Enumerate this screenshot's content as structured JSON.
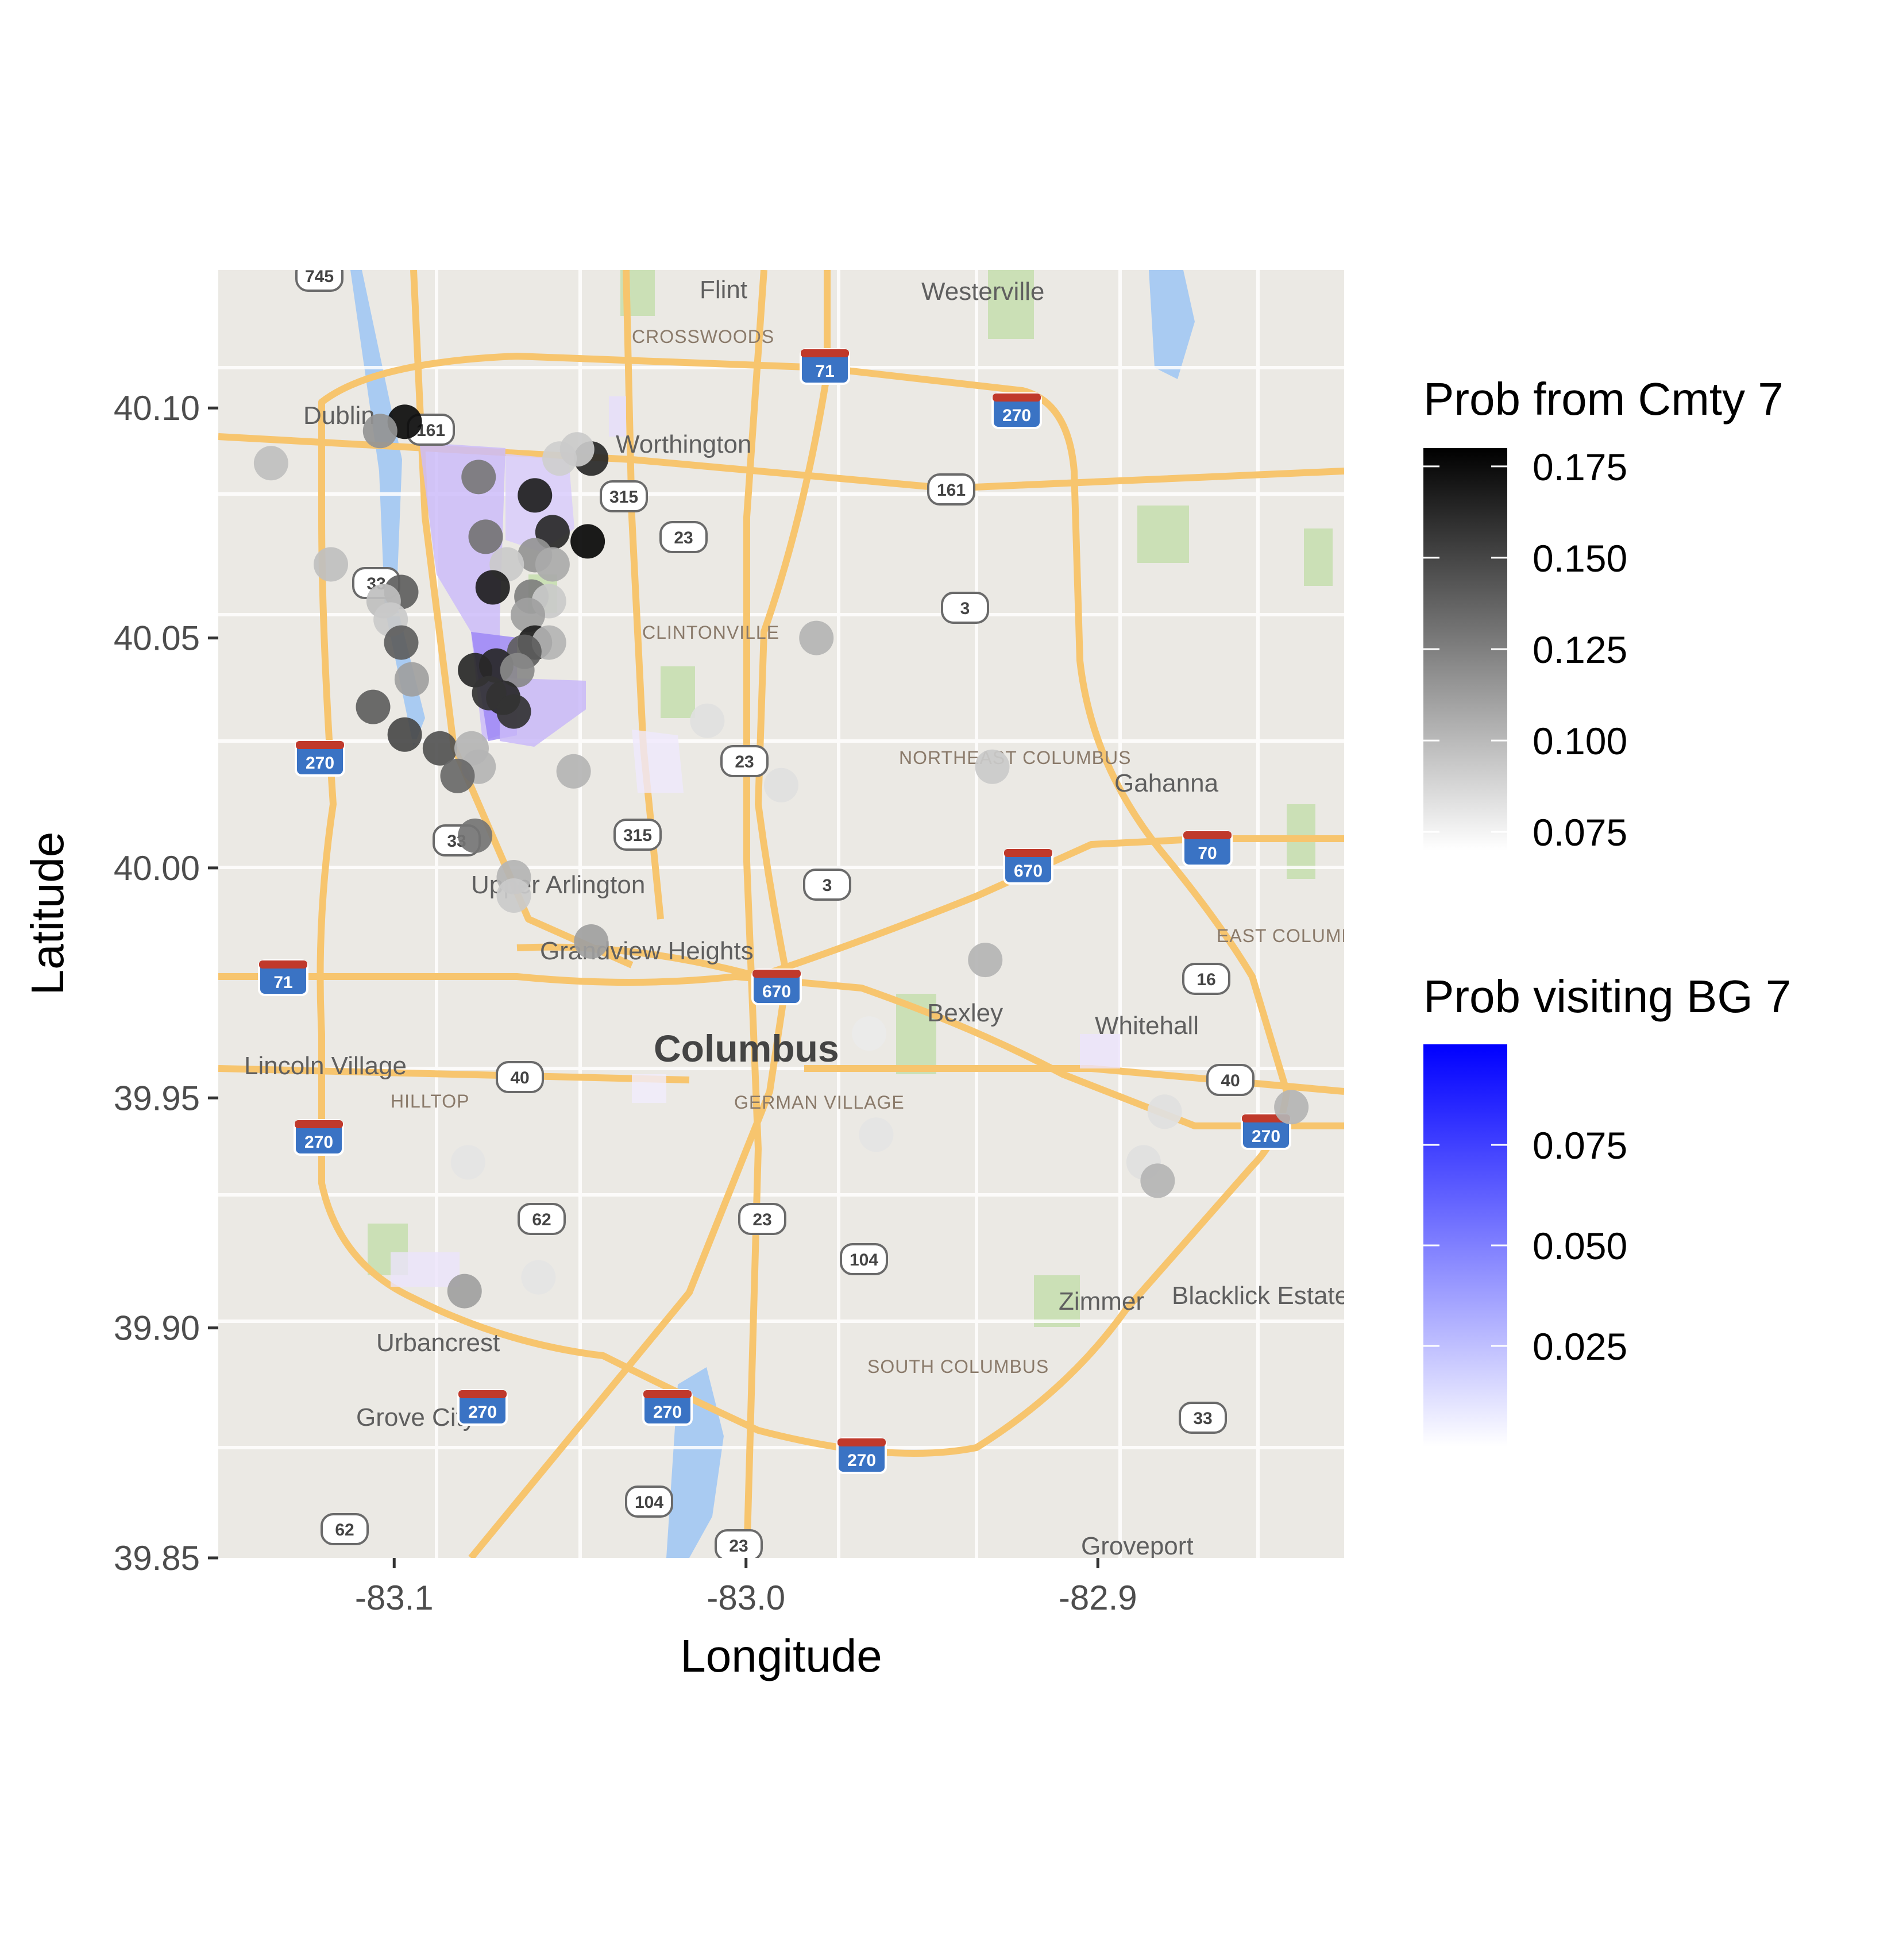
{
  "chart_data": {
    "type": "scatter",
    "basemap": "road map of Columbus, Ohio area",
    "xlabel": "Longitude",
    "ylabel": "Latitude",
    "xlim": [
      -83.15,
      -82.83
    ],
    "ylim": [
      39.85,
      40.13
    ],
    "x_ticks": [
      -83.1,
      -83.0,
      -82.9
    ],
    "x_tick_labels": [
      "-83.1",
      "-83.0",
      "-82.9"
    ],
    "y_ticks": [
      39.85,
      39.9,
      39.95,
      40.0,
      40.05,
      40.1
    ],
    "y_tick_labels": [
      "39.85",
      "39.90",
      "39.95",
      "40.00",
      "40.05",
      "40.10"
    ],
    "grid": false,
    "legend_placement": "right",
    "legends": [
      {
        "title": "Prob from Cmty 7",
        "encoding": "point fill, white to black",
        "range": [
          0.07,
          0.18
        ],
        "ticks": [
          0.175,
          0.15,
          0.125,
          0.1,
          0.075
        ],
        "tick_labels": [
          "0.175",
          "0.150",
          "0.125",
          "0.100",
          "0.075"
        ],
        "colors": [
          "#ffffff",
          "#000000"
        ]
      },
      {
        "title": "Prob visiting BG 7",
        "encoding": "block group fill, white to blue",
        "range": [
          0.0,
          0.1
        ],
        "ticks": [
          0.075,
          0.05,
          0.025
        ],
        "tick_labels": [
          "0.075",
          "0.050",
          "0.025"
        ],
        "colors": [
          "#ffffff",
          "#0000ff"
        ]
      }
    ],
    "points": [
      {
        "lon": -83.097,
        "lat": 40.097,
        "p": 0.178
      },
      {
        "lon": -83.104,
        "lat": 40.095,
        "p": 0.115
      },
      {
        "lon": -83.135,
        "lat": 40.088,
        "p": 0.095
      },
      {
        "lon": -83.044,
        "lat": 40.089,
        "p": 0.165
      },
      {
        "lon": -83.053,
        "lat": 40.089,
        "p": 0.088
      },
      {
        "lon": -83.048,
        "lat": 40.091,
        "p": 0.09
      },
      {
        "lon": -83.076,
        "lat": 40.085,
        "p": 0.128
      },
      {
        "lon": -83.06,
        "lat": 40.081,
        "p": 0.17
      },
      {
        "lon": -83.045,
        "lat": 40.071,
        "p": 0.182
      },
      {
        "lon": -83.055,
        "lat": 40.073,
        "p": 0.165
      },
      {
        "lon": -83.074,
        "lat": 40.072,
        "p": 0.13
      },
      {
        "lon": -83.06,
        "lat": 40.068,
        "p": 0.115
      },
      {
        "lon": -83.055,
        "lat": 40.066,
        "p": 0.105
      },
      {
        "lon": -83.068,
        "lat": 40.066,
        "p": 0.09
      },
      {
        "lon": -83.118,
        "lat": 40.066,
        "p": 0.095
      },
      {
        "lon": -83.072,
        "lat": 40.061,
        "p": 0.17
      },
      {
        "lon": -83.061,
        "lat": 40.059,
        "p": 0.125
      },
      {
        "lon": -83.056,
        "lat": 40.058,
        "p": 0.09
      },
      {
        "lon": -83.062,
        "lat": 40.055,
        "p": 0.11
      },
      {
        "lon": -83.098,
        "lat": 40.06,
        "p": 0.14
      },
      {
        "lon": -83.103,
        "lat": 40.058,
        "p": 0.095
      },
      {
        "lon": -83.101,
        "lat": 40.054,
        "p": 0.09
      },
      {
        "lon": -83.098,
        "lat": 40.049,
        "p": 0.14
      },
      {
        "lon": -83.06,
        "lat": 40.049,
        "p": 0.17
      },
      {
        "lon": -83.056,
        "lat": 40.049,
        "p": 0.1
      },
      {
        "lon": -83.063,
        "lat": 40.047,
        "p": 0.14
      },
      {
        "lon": -83.071,
        "lat": 40.044,
        "p": 0.165
      },
      {
        "lon": -83.065,
        "lat": 40.043,
        "p": 0.12
      },
      {
        "lon": -83.077,
        "lat": 40.043,
        "p": 0.165
      },
      {
        "lon": -83.069,
        "lat": 40.037,
        "p": 0.165
      },
      {
        "lon": -83.073,
        "lat": 40.038,
        "p": 0.16
      },
      {
        "lon": -83.066,
        "lat": 40.034,
        "p": 0.16
      },
      {
        "lon": -83.095,
        "lat": 40.041,
        "p": 0.11
      },
      {
        "lon": -83.106,
        "lat": 40.035,
        "p": 0.14
      },
      {
        "lon": -83.097,
        "lat": 40.029,
        "p": 0.15
      },
      {
        "lon": -83.087,
        "lat": 40.026,
        "p": 0.145
      },
      {
        "lon": -83.078,
        "lat": 40.026,
        "p": 0.1
      },
      {
        "lon": -83.076,
        "lat": 40.022,
        "p": 0.1
      },
      {
        "lon": -83.082,
        "lat": 40.02,
        "p": 0.135
      },
      {
        "lon": -83.049,
        "lat": 40.021,
        "p": 0.1
      },
      {
        "lon": -83.077,
        "lat": 40.007,
        "p": 0.13
      },
      {
        "lon": -83.066,
        "lat": 39.998,
        "p": 0.1
      },
      {
        "lon": -83.066,
        "lat": 39.994,
        "p": 0.09
      },
      {
        "lon": -83.044,
        "lat": 39.984,
        "p": 0.11
      },
      {
        "lon": -82.98,
        "lat": 40.05,
        "p": 0.1
      },
      {
        "lon": -83.011,
        "lat": 40.032,
        "p": 0.08
      },
      {
        "lon": -82.99,
        "lat": 40.018,
        "p": 0.08
      },
      {
        "lon": -82.93,
        "lat": 40.022,
        "p": 0.09
      },
      {
        "lon": -82.932,
        "lat": 39.98,
        "p": 0.1
      },
      {
        "lon": -82.965,
        "lat": 39.964,
        "p": 0.075
      },
      {
        "lon": -82.963,
        "lat": 39.942,
        "p": 0.078
      },
      {
        "lon": -82.881,
        "lat": 39.947,
        "p": 0.08
      },
      {
        "lon": -82.887,
        "lat": 39.936,
        "p": 0.08
      },
      {
        "lon": -82.883,
        "lat": 39.932,
        "p": 0.1
      },
      {
        "lon": -82.845,
        "lat": 39.948,
        "p": 0.1
      },
      {
        "lon": -83.079,
        "lat": 39.936,
        "p": 0.078
      },
      {
        "lon": -83.059,
        "lat": 39.911,
        "p": 0.078
      },
      {
        "lon": -83.08,
        "lat": 39.908,
        "p": 0.11
      }
    ]
  },
  "map_labels": {
    "places": [
      "Flint",
      "Westerville",
      "Dublin",
      "Worthington",
      "Gahanna",
      "Upper Arlington",
      "Grandview Heights",
      "Bexley",
      "Whitehall",
      "Lincoln Village",
      "Urbancrest",
      "Grove City",
      "Zimmer",
      "Blacklick Estates",
      "Groveport"
    ],
    "districts": [
      "CROSSWOODS",
      "CLINTONVILLE",
      "NORTHEAST COLUMBUS",
      "EAST COLUMBUS",
      "HILLTOP",
      "GERMAN VILLAGE",
      "SOUTH COLUMBUS"
    ],
    "city": "Columbus",
    "interstate_shields": [
      "71",
      "270",
      "670",
      "70",
      "71",
      "270",
      "270",
      "270",
      "270",
      "670",
      "270",
      "270"
    ],
    "route_shields": [
      "745",
      "161",
      "315",
      "23",
      "161",
      "3",
      "33",
      "23",
      "33",
      "315",
      "3",
      "16",
      "40",
      "40",
      "62",
      "23",
      "104",
      "104",
      "33",
      "62",
      "23"
    ]
  }
}
